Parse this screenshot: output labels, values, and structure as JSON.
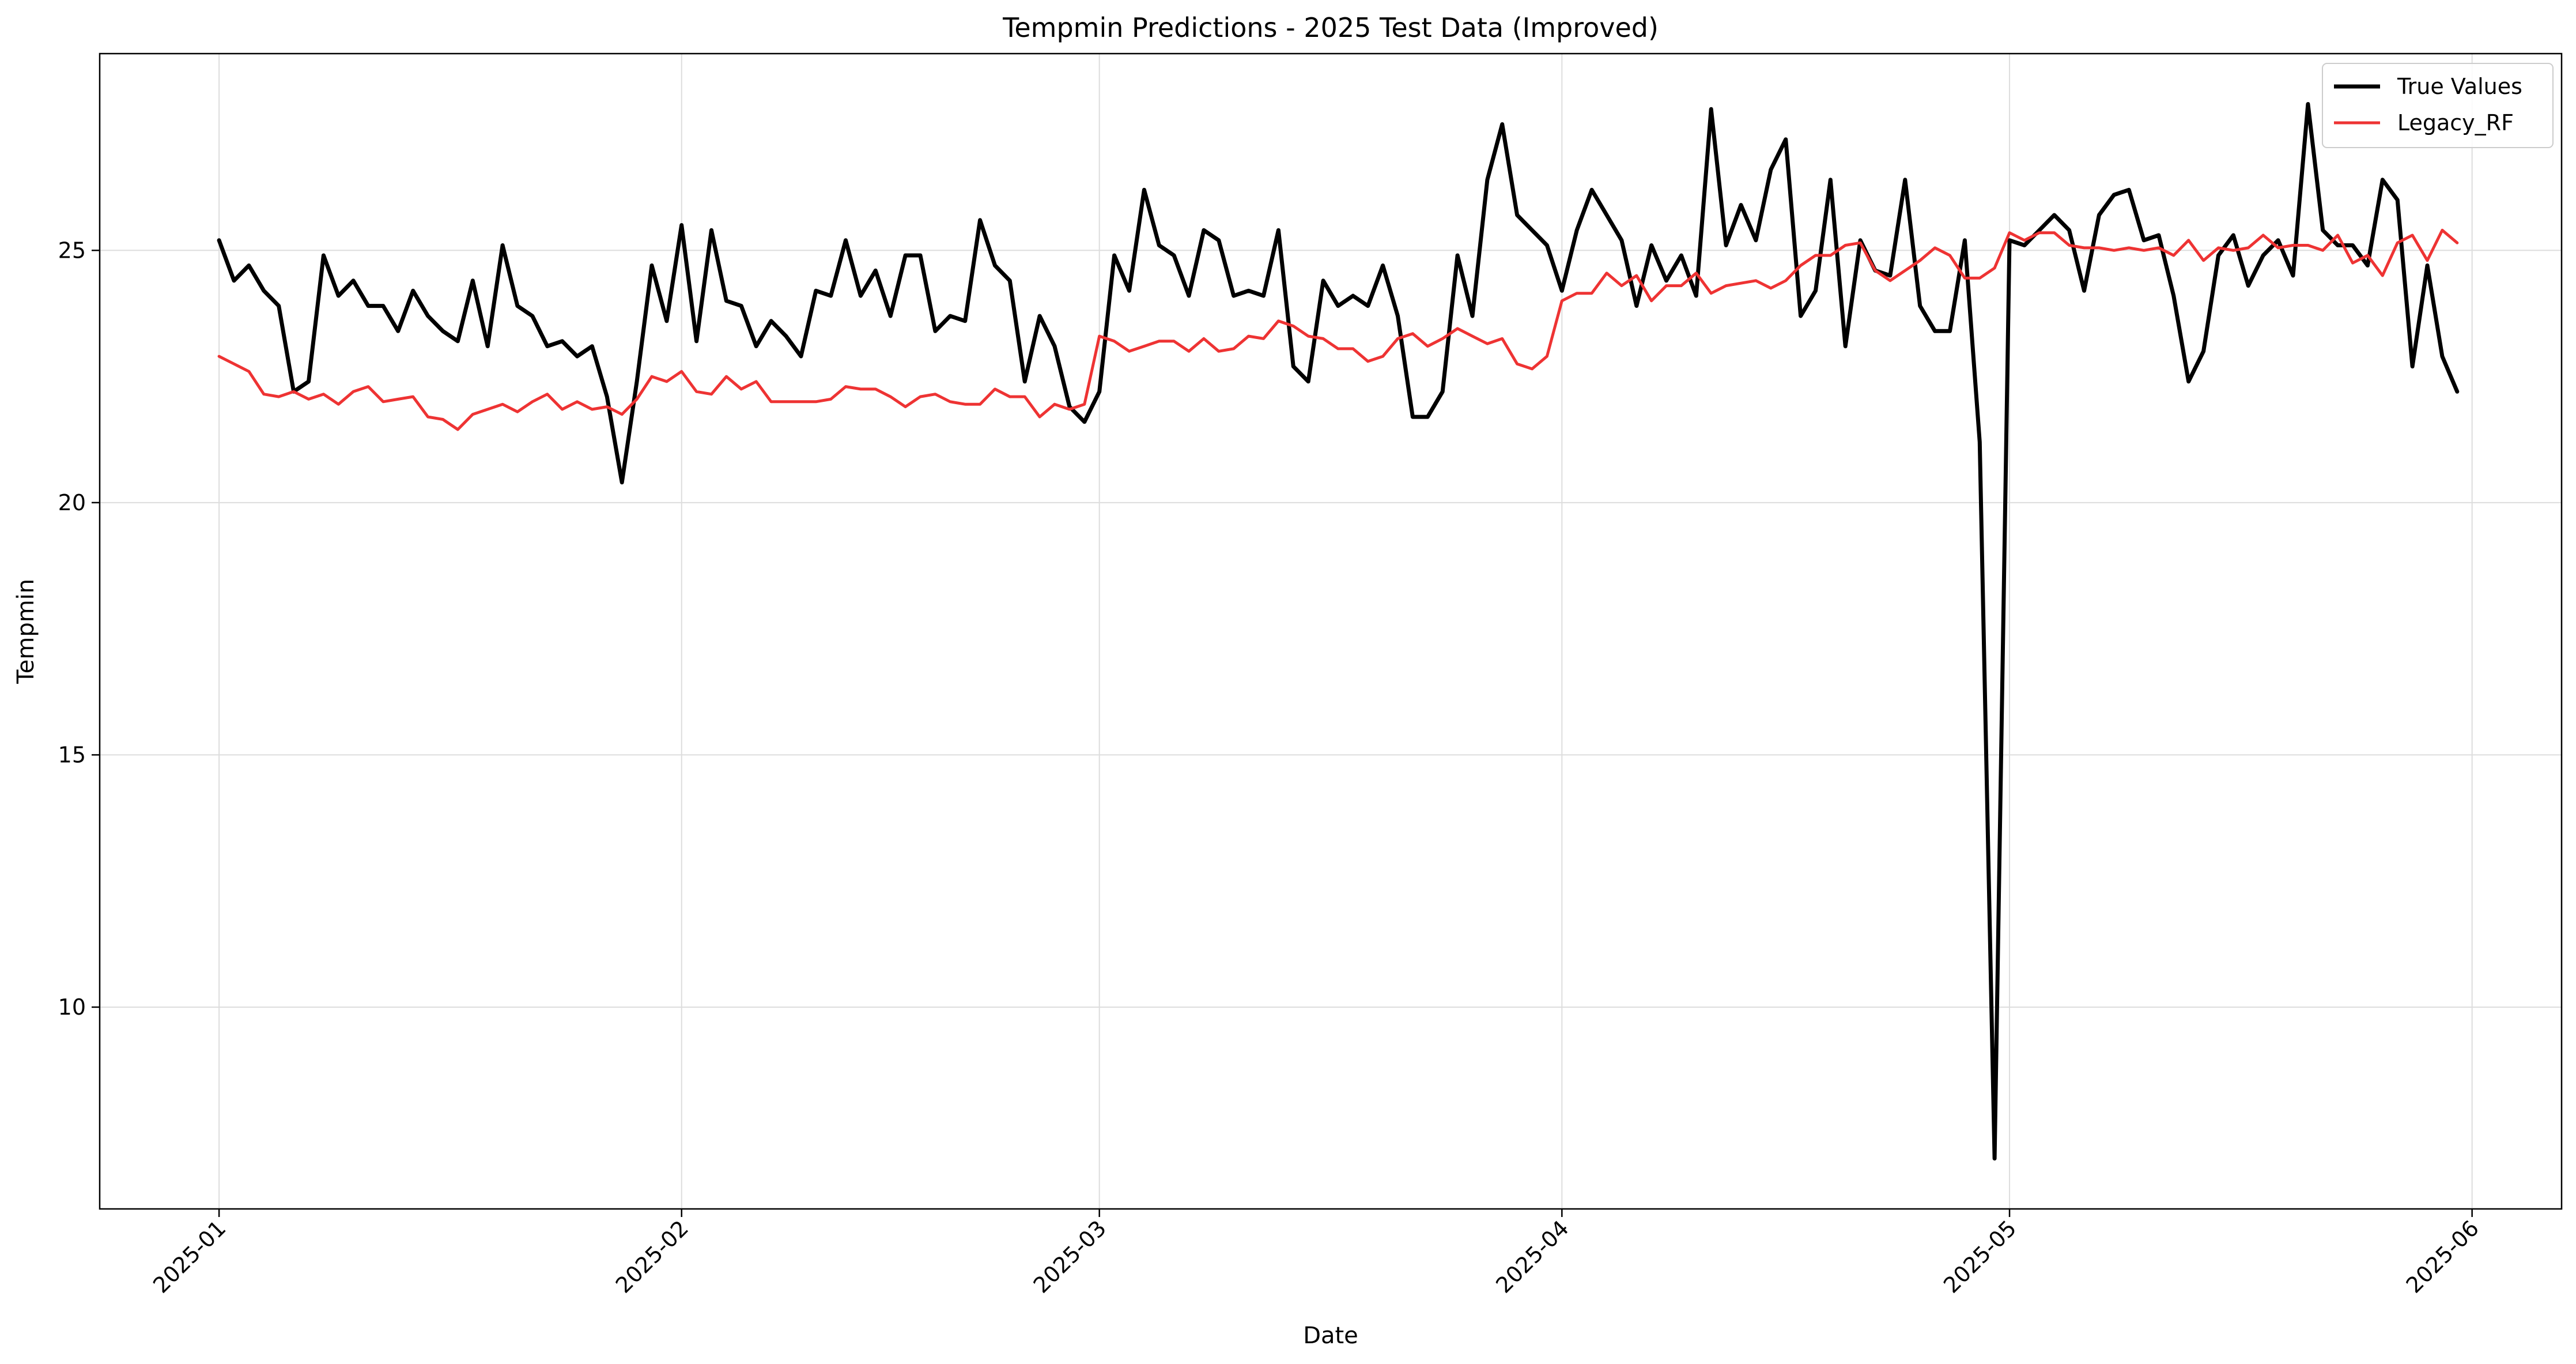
{
  "chart_data": {
    "type": "line",
    "title": "Tempmin Predictions - 2025 Test Data (Improved)",
    "xlabel": "Date",
    "ylabel": "Tempmin",
    "x_start": "2025-01-01",
    "x_ticks": [
      "2025-01",
      "2025-02",
      "2025-03",
      "2025-04",
      "2025-05",
      "2025-06"
    ],
    "y_ticks": [
      10,
      15,
      20,
      25
    ],
    "xlim": [
      "2024-12-24",
      "2025-06-07"
    ],
    "ylim": [
      6.0,
      28.9
    ],
    "grid": true,
    "legend_position": "top-right",
    "series": [
      {
        "name": "True Values",
        "color": "#000000",
        "values": [
          25.2,
          24.4,
          24.7,
          24.2,
          23.9,
          22.2,
          22.4,
          24.9,
          24.1,
          24.4,
          23.9,
          23.9,
          23.4,
          24.2,
          23.7,
          23.4,
          23.2,
          24.4,
          23.1,
          25.1,
          23.9,
          23.7,
          23.1,
          23.2,
          22.9,
          23.1,
          22.1,
          20.4,
          22.4,
          24.7,
          23.6,
          25.5,
          23.2,
          25.4,
          24.0,
          23.9,
          23.1,
          23.6,
          23.3,
          22.9,
          24.2,
          24.1,
          25.2,
          24.1,
          24.6,
          23.7,
          24.9,
          24.9,
          23.4,
          23.7,
          23.6,
          25.6,
          24.7,
          24.4,
          22.4,
          23.7,
          23.1,
          21.9,
          21.6,
          22.2,
          24.9,
          24.2,
          26.2,
          25.1,
          24.9,
          24.1,
          25.4,
          25.2,
          24.1,
          24.2,
          24.1,
          25.4,
          22.7,
          22.4,
          24.4,
          23.9,
          24.1,
          23.9,
          24.7,
          23.7,
          21.7,
          21.7,
          22.2,
          24.9,
          23.7,
          26.4,
          27.5,
          25.7,
          25.4,
          25.1,
          24.2,
          25.4,
          26.2,
          25.7,
          25.2,
          23.9,
          25.1,
          24.4,
          24.9,
          24.1,
          27.8,
          25.1,
          25.9,
          25.2,
          26.6,
          27.2,
          23.7,
          24.2,
          26.4,
          23.1,
          25.2,
          24.6,
          24.5,
          26.4,
          23.9,
          23.4,
          23.4,
          25.2,
          21.2,
          7.0,
          25.2,
          25.1,
          25.4,
          25.7,
          25.4,
          24.2,
          25.7,
          26.1,
          26.2,
          25.2,
          25.3,
          24.1,
          22.4,
          23.0,
          24.9,
          25.3,
          24.3,
          24.9,
          25.2,
          24.5,
          27.9,
          25.4,
          25.1,
          25.1,
          24.7,
          26.4,
          26.0,
          22.7,
          24.7,
          22.9,
          22.2
        ]
      },
      {
        "name": "Legacy_RF",
        "color": "#ee3333",
        "values": [
          22.9,
          22.75,
          22.6,
          22.15,
          22.1,
          22.2,
          22.05,
          22.15,
          21.95,
          22.2,
          22.3,
          22.0,
          22.05,
          22.1,
          21.7,
          21.65,
          21.45,
          21.75,
          21.85,
          21.95,
          21.8,
          22.0,
          22.15,
          21.85,
          22.0,
          21.85,
          21.9,
          21.75,
          22.05,
          22.5,
          22.4,
          22.6,
          22.2,
          22.15,
          22.5,
          22.25,
          22.4,
          22.0,
          22.0,
          22.0,
          22.0,
          22.05,
          22.3,
          22.25,
          22.25,
          22.1,
          21.9,
          22.1,
          22.15,
          22.0,
          21.95,
          21.95,
          22.25,
          22.1,
          22.1,
          21.7,
          21.95,
          21.85,
          21.95,
          23.3,
          23.2,
          23.0,
          23.1,
          23.2,
          23.2,
          23.0,
          23.25,
          23.0,
          23.05,
          23.3,
          23.25,
          23.6,
          23.5,
          23.3,
          23.25,
          23.05,
          23.05,
          22.8,
          22.9,
          23.25,
          23.35,
          23.1,
          23.25,
          23.45,
          23.3,
          23.15,
          23.25,
          22.75,
          22.65,
          22.9,
          24.0,
          24.15,
          24.15,
          24.55,
          24.3,
          24.5,
          24.0,
          24.3,
          24.3,
          24.55,
          24.15,
          24.3,
          24.35,
          24.4,
          24.25,
          24.4,
          24.7,
          24.9,
          24.9,
          25.1,
          25.15,
          24.6,
          24.4,
          24.6,
          24.8,
          25.05,
          24.9,
          24.45,
          24.45,
          24.65,
          25.35,
          25.2,
          25.35,
          25.35,
          25.1,
          25.05,
          25.05,
          25.0,
          25.05,
          25.0,
          25.05,
          24.9,
          25.2,
          24.8,
          25.05,
          25.0,
          25.05,
          25.3,
          25.05,
          25.1,
          25.1,
          25.0,
          25.3,
          24.75,
          24.9,
          24.5,
          25.15,
          25.3,
          24.8,
          25.4,
          25.15
        ]
      }
    ]
  }
}
